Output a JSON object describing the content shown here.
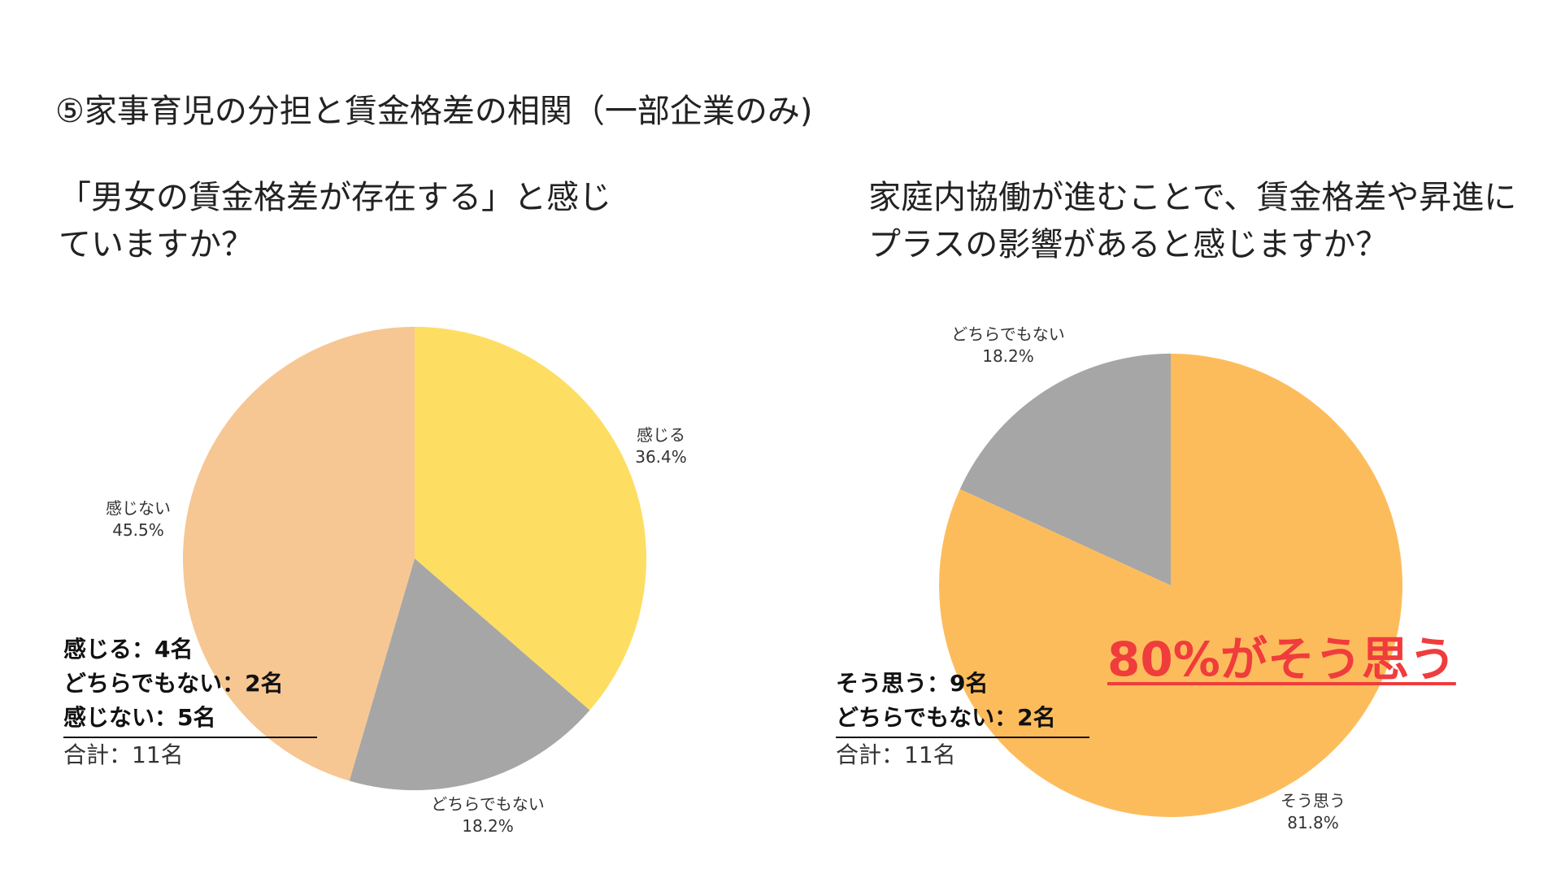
{
  "slide": {
    "title": "⑤家事育児の分担と賃金格差の相関（一部企業のみ)",
    "highlight": "80%がそう思う",
    "highlight_color": "#f03c3c"
  },
  "left_panel": {
    "question": "「男女の賃金格差が存在する」と感じていますか？",
    "summary": [
      "感じる：4名",
      "どちらでもない：2名",
      "感じない：5名"
    ],
    "total": "合計：11名"
  },
  "right_panel": {
    "question": "家庭内協働が進むことで、賃金格差や昇進にプラスの影響があると感じますか？",
    "summary": [
      "そう思う：9名",
      "どちらでもない：2名"
    ],
    "total": "合計：11名"
  },
  "chart_data": [
    {
      "type": "pie",
      "title": "",
      "start_angle_deg": 0,
      "direction": "clockwise",
      "slices": [
        {
          "label": "感じる",
          "value": 4,
          "pct_label": "36.4%",
          "color": "#fdde62"
        },
        {
          "label": "どちらでもない",
          "value": 2,
          "pct_label": "18.2%",
          "color": "#a6a6a6"
        },
        {
          "label": "感じない",
          "value": 5,
          "pct_label": "45.5%",
          "color": "#f6c793"
        }
      ]
    },
    {
      "type": "pie",
      "title": "",
      "start_angle_deg": 0,
      "direction": "clockwise",
      "slices": [
        {
          "label": "そう思う",
          "value": 9,
          "pct_label": "81.8%",
          "color": "#fdbc5c"
        },
        {
          "label": "どちらでもない",
          "value": 2,
          "pct_label": "18.2%",
          "color": "#a6a6a6"
        }
      ]
    }
  ]
}
